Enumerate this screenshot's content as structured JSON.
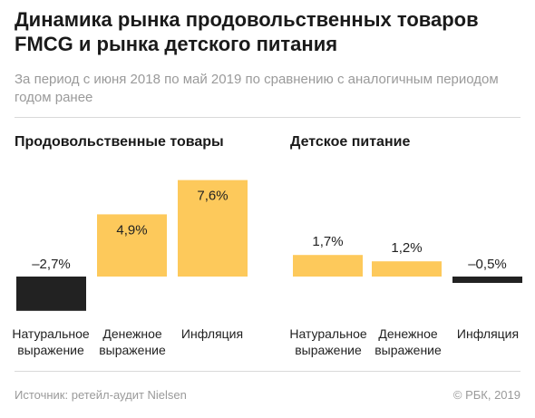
{
  "title": "Динамика рынка продовольственных товаров FMCG и рынка детского питания",
  "subtitle": "За период с июня 2018 по май 2019 по сравнению с аналогичным периодом годом ранее",
  "footer": {
    "source": "Источник: ретейл-аудит Nielsen",
    "copyright": "© РБК, 2019"
  },
  "colors": {
    "positive": "#fdc95b",
    "negative": "#222222"
  },
  "chart_data": [
    {
      "type": "bar",
      "title": "Продовольственные товары",
      "categories": [
        "Натуральное\nвыражение",
        "Денежное\nвыражение",
        "Инфляция"
      ],
      "values": [
        -2.7,
        4.9,
        7.6
      ],
      "labels": [
        "–2,7%",
        "4,9%",
        "7,6%"
      ],
      "unit": "%"
    },
    {
      "type": "bar",
      "title": "Детское питание",
      "categories": [
        "Натуральное\nвыражение",
        "Денежное\nвыражение",
        "Инфляция"
      ],
      "values": [
        1.7,
        1.2,
        -0.5
      ],
      "labels": [
        "1,7%",
        "1,2%",
        "–0,5%"
      ],
      "unit": "%"
    }
  ]
}
